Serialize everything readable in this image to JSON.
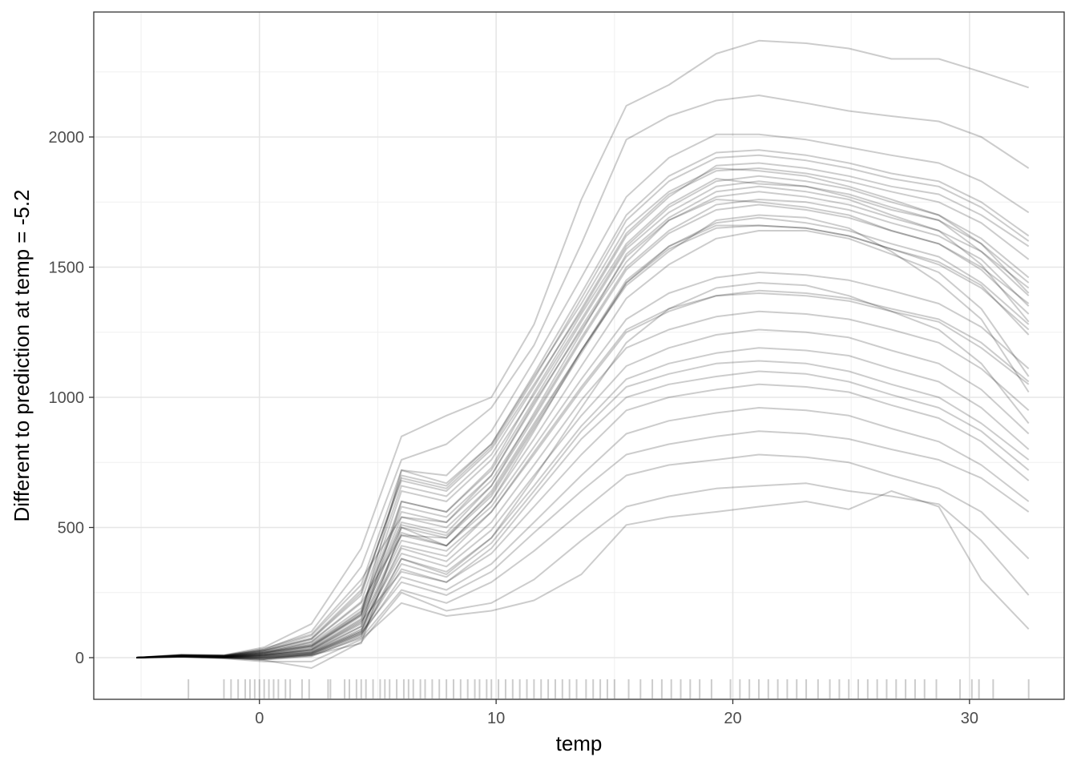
{
  "chart_data": {
    "type": "line",
    "title": "",
    "xlabel": "temp",
    "ylabel": "Different to prediction at temp = -5.2",
    "xlim": [
      -7,
      34
    ],
    "ylim": [
      -160,
      2480
    ],
    "x_ticks": [
      0,
      10,
      20,
      30
    ],
    "x_tick_labels": [
      "0",
      "10",
      "20",
      "30"
    ],
    "y_ticks": [
      0,
      500,
      1000,
      1500,
      2000
    ],
    "y_tick_labels": [
      "0",
      "500",
      "1000",
      "1500",
      "2000"
    ],
    "grid": true,
    "legend": "none",
    "line_color": "#000000",
    "line_opacity": 0.2,
    "x": [
      -5.2,
      -3.3,
      -1.5,
      0.2,
      2.2,
      4.3,
      6.0,
      7.9,
      9.8,
      11.6,
      13.6,
      15.5,
      17.3,
      19.3,
      21.1,
      23.1,
      24.9,
      26.7,
      28.7,
      30.5,
      32.5
    ],
    "series": [
      {
        "values": [
          0,
          6,
          3,
          0,
          10,
          55,
          500,
          430,
          600,
          870,
          1180,
          1430,
          1560,
          1680,
          1700,
          1690,
          1650,
          1560,
          1440,
          1300,
          1020
        ]
      },
      {
        "values": [
          0,
          10,
          6,
          20,
          45,
          165,
          720,
          670,
          820,
          1080,
          1360,
          1650,
          1790,
          1880,
          1870,
          1850,
          1810,
          1760,
          1700,
          1590,
          1400
        ]
      },
      {
        "values": [
          0,
          8,
          8,
          35,
          90,
          300,
          540,
          520,
          700,
          980,
          1260,
          1520,
          1680,
          1760,
          1750,
          1730,
          1700,
          1640,
          1590,
          1500,
          1360
        ]
      },
      {
        "values": [
          0,
          4,
          -2,
          -8,
          5,
          80,
          380,
          320,
          460,
          690,
          960,
          1210,
          1340,
          1420,
          1440,
          1430,
          1390,
          1330,
          1260,
          1130,
          900
        ]
      },
      {
        "values": [
          0,
          5,
          1,
          -10,
          -40,
          60,
          250,
          180,
          210,
          300,
          450,
          580,
          620,
          650,
          660,
          670,
          640,
          620,
          590,
          450,
          240
        ]
      },
      {
        "values": [
          0,
          12,
          10,
          40,
          130,
          420,
          850,
          930,
          1000,
          1280,
          1760,
          2120,
          2200,
          2320,
          2370,
          2360,
          2340,
          2300,
          2300,
          2250,
          2190
        ]
      },
      {
        "values": [
          0,
          6,
          4,
          10,
          25,
          120,
          600,
          560,
          730,
          1020,
          1320,
          1590,
          1740,
          1840,
          1820,
          1810,
          1770,
          1720,
          1680,
          1560,
          1390
        ]
      },
      {
        "values": [
          0,
          7,
          5,
          18,
          60,
          210,
          470,
          460,
          640,
          900,
          1180,
          1440,
          1580,
          1660,
          1660,
          1650,
          1620,
          1570,
          1520,
          1430,
          1240
        ]
      },
      {
        "values": [
          0,
          3,
          -3,
          -15,
          -15,
          70,
          210,
          160,
          180,
          220,
          320,
          510,
          540,
          560,
          580,
          600,
          570,
          640,
          580,
          300,
          110
        ]
      },
      {
        "values": [
          0,
          5,
          2,
          5,
          20,
          110,
          430,
          390,
          560,
          790,
          1040,
          1260,
          1340,
          1390,
          1400,
          1390,
          1370,
          1330,
          1290,
          1190,
          1050
        ]
      },
      {
        "values": [
          0,
          9,
          7,
          28,
          75,
          260,
          680,
          640,
          800,
          1050,
          1330,
          1620,
          1770,
          1890,
          1900,
          1880,
          1850,
          1810,
          1780,
          1700,
          1580
        ]
      },
      {
        "values": [
          0,
          6,
          3,
          8,
          30,
          140,
          330,
          290,
          420,
          620,
          840,
          1000,
          1050,
          1080,
          1100,
          1090,
          1060,
          1010,
          960,
          870,
          720
        ]
      },
      {
        "values": [
          0,
          8,
          6,
          22,
          55,
          190,
          560,
          520,
          680,
          930,
          1230,
          1500,
          1640,
          1740,
          1760,
          1750,
          1720,
          1670,
          1620,
          1530,
          1350
        ]
      },
      {
        "values": [
          0,
          4,
          0,
          -5,
          15,
          95,
          290,
          240,
          330,
          480,
          640,
          780,
          820,
          850,
          870,
          860,
          840,
          800,
          760,
          690,
          560
        ]
      },
      {
        "values": [
          0,
          11,
          9,
          32,
          100,
          350,
          760,
          820,
          960,
          1200,
          1590,
          1990,
          2080,
          2140,
          2160,
          2130,
          2100,
          2080,
          2060,
          2000,
          1880
        ]
      },
      {
        "values": [
          0,
          5,
          2,
          3,
          18,
          100,
          480,
          430,
          600,
          840,
          1120,
          1380,
          1510,
          1610,
          1640,
          1640,
          1610,
          1550,
          1480,
          1340,
          1080
        ]
      },
      {
        "values": [
          0,
          7,
          4,
          14,
          40,
          160,
          520,
          480,
          660,
          940,
          1250,
          1550,
          1690,
          1790,
          1810,
          1790,
          1760,
          1700,
          1640,
          1510,
          1290
        ]
      },
      {
        "values": [
          0,
          6,
          3,
          6,
          22,
          120,
          400,
          350,
          490,
          700,
          930,
          1120,
          1190,
          1240,
          1260,
          1250,
          1230,
          1180,
          1130,
          1030,
          860
        ]
      },
      {
        "values": [
          0,
          8,
          5,
          20,
          50,
          180,
          640,
          600,
          760,
          1010,
          1300,
          1580,
          1730,
          1830,
          1850,
          1830,
          1800,
          1750,
          1700,
          1610,
          1460
        ]
      },
      {
        "values": [
          0,
          3,
          -1,
          -6,
          8,
          75,
          260,
          210,
          290,
          410,
          560,
          700,
          740,
          760,
          780,
          770,
          750,
          700,
          650,
          560,
          380
        ]
      },
      {
        "values": [
          0,
          7,
          5,
          16,
          45,
          170,
          580,
          540,
          700,
          970,
          1270,
          1540,
          1680,
          1770,
          1790,
          1770,
          1740,
          1690,
          1640,
          1560,
          1420
        ]
      },
      {
        "values": [
          0,
          5,
          3,
          9,
          28,
          130,
          450,
          410,
          560,
          780,
          1030,
          1250,
          1330,
          1390,
          1410,
          1400,
          1380,
          1340,
          1300,
          1210,
          1060
        ]
      },
      {
        "values": [
          0,
          9,
          7,
          26,
          70,
          240,
          700,
          660,
          820,
          1090,
          1400,
          1700,
          1850,
          1940,
          1950,
          1930,
          1900,
          1860,
          1830,
          1750,
          1620
        ]
      },
      {
        "values": [
          0,
          4,
          1,
          -2,
          12,
          90,
          360,
          310,
          440,
          640,
          870,
          1040,
          1090,
          1130,
          1140,
          1130,
          1100,
          1050,
          1000,
          900,
          760
        ]
      },
      {
        "values": [
          0,
          6,
          4,
          12,
          35,
          150,
          500,
          460,
          620,
          880,
          1170,
          1440,
          1570,
          1650,
          1660,
          1650,
          1620,
          1570,
          1510,
          1420,
          1260
        ]
      },
      {
        "values": [
          0,
          10,
          8,
          30,
          85,
          280,
          720,
          700,
          870,
          1140,
          1460,
          1770,
          1920,
          2010,
          2010,
          1990,
          1960,
          1930,
          1900,
          1830,
          1710
        ]
      },
      {
        "values": [
          0,
          5,
          2,
          4,
          20,
          105,
          420,
          370,
          520,
          740,
          990,
          1190,
          1260,
          1310,
          1330,
          1320,
          1300,
          1260,
          1210,
          1110,
          950
        ]
      },
      {
        "values": [
          0,
          7,
          5,
          18,
          48,
          175,
          600,
          560,
          720,
          990,
          1290,
          1570,
          1710,
          1810,
          1830,
          1810,
          1780,
          1730,
          1680,
          1590,
          1440
        ]
      },
      {
        "values": [
          0,
          3,
          0,
          -4,
          10,
          85,
          310,
          260,
          360,
          520,
          700,
          860,
          910,
          940,
          960,
          950,
          930,
          880,
          830,
          740,
          600
        ]
      },
      {
        "values": [
          0,
          8,
          6,
          24,
          62,
          215,
          660,
          620,
          780,
          1040,
          1340,
          1630,
          1780,
          1870,
          1880,
          1860,
          1830,
          1790,
          1750,
          1670,
          1530
        ]
      },
      {
        "values": [
          0,
          6,
          3,
          10,
          30,
          135,
          470,
          430,
          580,
          810,
          1070,
          1300,
          1400,
          1460,
          1480,
          1470,
          1450,
          1410,
          1360,
          1270,
          1110
        ]
      },
      {
        "values": [
          0,
          5,
          1,
          2,
          16,
          100,
          380,
          330,
          460,
          660,
          890,
          1070,
          1130,
          1170,
          1190,
          1180,
          1160,
          1110,
          1060,
          960,
          800
        ]
      },
      {
        "values": [
          0,
          9,
          7,
          27,
          72,
          250,
          690,
          650,
          810,
          1070,
          1380,
          1680,
          1830,
          1920,
          1930,
          1910,
          1880,
          1840,
          1810,
          1730,
          1600
        ]
      },
      {
        "values": [
          0,
          7,
          4,
          15,
          42,
          165,
          540,
          500,
          660,
          920,
          1220,
          1490,
          1630,
          1720,
          1740,
          1720,
          1690,
          1640,
          1590,
          1490,
          1320
        ]
      },
      {
        "values": [
          0,
          4,
          1,
          -1,
          14,
          92,
          340,
          290,
          400,
          580,
          780,
          950,
          1000,
          1030,
          1050,
          1040,
          1020,
          970,
          920,
          830,
          680
        ]
      },
      {
        "values": [
          0,
          6,
          4,
          11,
          33,
          145,
          510,
          470,
          630,
          890,
          1180,
          1450,
          1580,
          1670,
          1690,
          1670,
          1640,
          1590,
          1540,
          1440,
          1280
        ]
      }
    ],
    "rug_x": [
      -3.0,
      -1.5,
      -1.2,
      -0.9,
      -0.6,
      -0.4,
      -0.2,
      0.0,
      0.2,
      0.4,
      0.6,
      0.8,
      1.1,
      1.3,
      1.8,
      2.1,
      2.9,
      3.0,
      3.6,
      3.8,
      4.1,
      4.3,
      4.5,
      4.8,
      5.1,
      5.3,
      5.5,
      5.8,
      6.1,
      6.3,
      6.5,
      6.8,
      7.0,
      7.3,
      7.6,
      7.9,
      8.2,
      8.5,
      8.8,
      9.1,
      9.3,
      9.6,
      9.8,
      10.1,
      10.4,
      10.7,
      11.0,
      11.3,
      11.6,
      11.9,
      12.2,
      12.5,
      12.8,
      13.1,
      13.4,
      13.8,
      14.1,
      14.4,
      14.7,
      15.0,
      15.6,
      16.1,
      16.6,
      17.0,
      17.4,
      17.8,
      18.2,
      18.6,
      19.1,
      19.9,
      20.3,
      20.7,
      21.1,
      21.5,
      21.9,
      22.3,
      22.7,
      23.1,
      23.6,
      24.1,
      24.5,
      24.9,
      25.3,
      25.7,
      26.1,
      26.5,
      26.9,
      27.3,
      27.7,
      28.1,
      28.6,
      29.6,
      30.1,
      30.4,
      31.0,
      32.5
    ]
  }
}
